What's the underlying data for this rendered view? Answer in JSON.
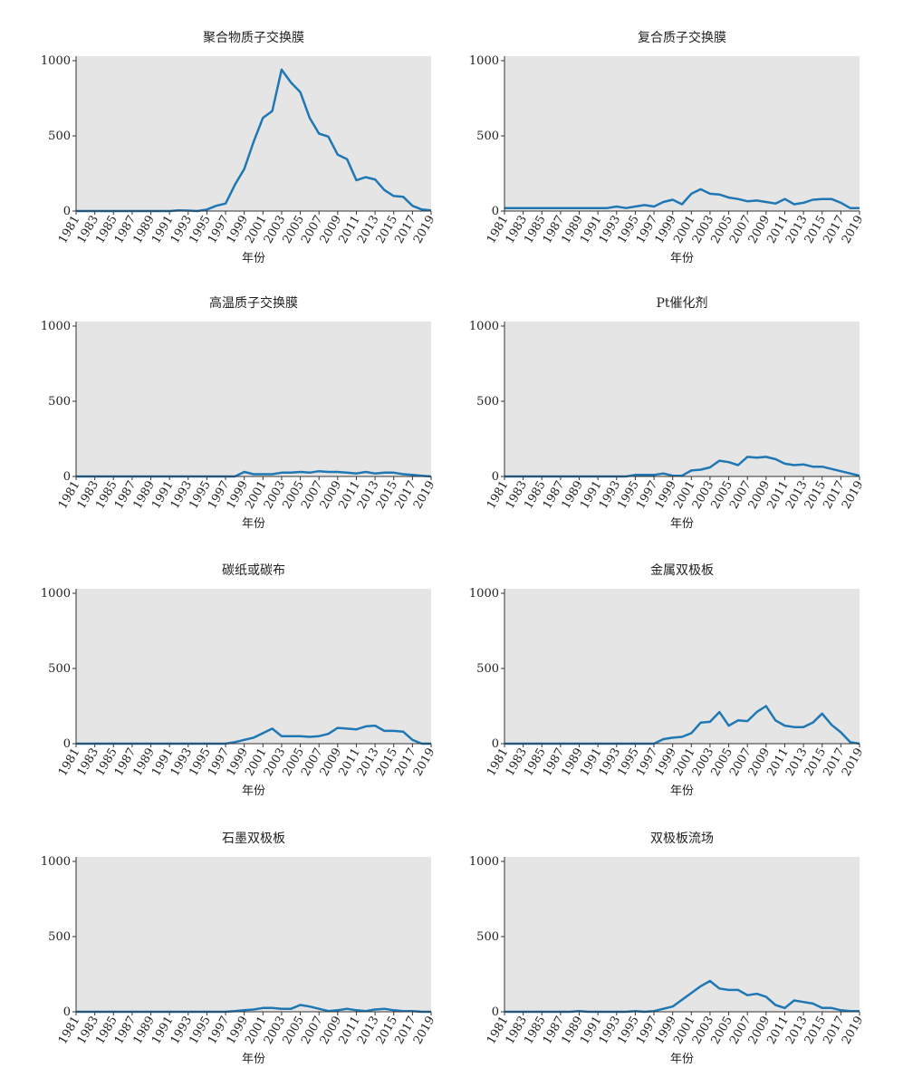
{
  "chart_data": [
    {
      "type": "line",
      "title": "聚合物质子交换膜",
      "x_label": "年份",
      "x": [
        1981,
        1982,
        1983,
        1984,
        1985,
        1986,
        1987,
        1988,
        1989,
        1990,
        1991,
        1992,
        1993,
        1994,
        1995,
        1996,
        1997,
        1998,
        1999,
        2000,
        2001,
        2002,
        2003,
        2004,
        2005,
        2006,
        2007,
        2008,
        2009,
        2010,
        2011,
        2012,
        2013,
        2014,
        2015,
        2016,
        2017,
        2018,
        2019
      ],
      "values": [
        0,
        0,
        0,
        0,
        0,
        0,
        0,
        0,
        0,
        0,
        0,
        5,
        3,
        0,
        10,
        35,
        50,
        175,
        280,
        460,
        620,
        665,
        940,
        855,
        790,
        620,
        515,
        495,
        375,
        345,
        205,
        225,
        210,
        140,
        100,
        95,
        35,
        10,
        5
      ],
      "color": "#1f77b4",
      "xlim": [
        1981,
        2019
      ],
      "xticks": [
        1981,
        1983,
        1985,
        1987,
        1989,
        1991,
        1993,
        1995,
        1997,
        1999,
        2001,
        2003,
        2005,
        2007,
        2009,
        2011,
        2013,
        2015,
        2017,
        2019
      ],
      "ylim": [
        0,
        1030
      ],
      "yticks": [
        0,
        500,
        1000
      ]
    },
    {
      "type": "line",
      "title": "复合质子交换膜",
      "x_label": "年份",
      "x": [
        1981,
        1982,
        1983,
        1984,
        1985,
        1986,
        1987,
        1988,
        1989,
        1990,
        1991,
        1992,
        1993,
        1994,
        1995,
        1996,
        1997,
        1998,
        1999,
        2000,
        2001,
        2002,
        2003,
        2004,
        2005,
        2006,
        2007,
        2008,
        2009,
        2010,
        2011,
        2012,
        2013,
        2014,
        2015,
        2016,
        2017,
        2018,
        2019
      ],
      "values": [
        20,
        20,
        20,
        20,
        20,
        20,
        20,
        20,
        20,
        20,
        20,
        20,
        30,
        20,
        30,
        40,
        30,
        60,
        75,
        45,
        115,
        145,
        115,
        110,
        90,
        80,
        65,
        70,
        60,
        50,
        80,
        45,
        55,
        75,
        80,
        80,
        55,
        20,
        20
      ],
      "color": "#1f77b4",
      "xlim": [
        1981,
        2019
      ],
      "xticks": [
        1981,
        1983,
        1985,
        1987,
        1989,
        1991,
        1993,
        1995,
        1997,
        1999,
        2001,
        2003,
        2005,
        2007,
        2009,
        2011,
        2013,
        2015,
        2017,
        2019
      ],
      "ylim": [
        0,
        1030
      ],
      "yticks": [
        0,
        500,
        1000
      ]
    },
    {
      "type": "line",
      "title": "高温质子交换膜",
      "x_label": "年份",
      "x": [
        1981,
        1982,
        1983,
        1984,
        1985,
        1986,
        1987,
        1988,
        1989,
        1990,
        1991,
        1992,
        1993,
        1994,
        1995,
        1996,
        1997,
        1998,
        1999,
        2000,
        2001,
        2002,
        2003,
        2004,
        2005,
        2006,
        2007,
        2008,
        2009,
        2010,
        2011,
        2012,
        2013,
        2014,
        2015,
        2016,
        2017,
        2018,
        2019
      ],
      "values": [
        0,
        0,
        0,
        0,
        0,
        0,
        0,
        0,
        0,
        0,
        0,
        0,
        0,
        0,
        0,
        0,
        0,
        0,
        30,
        15,
        15,
        15,
        25,
        25,
        30,
        25,
        35,
        30,
        30,
        25,
        20,
        30,
        20,
        25,
        25,
        15,
        10,
        5,
        0
      ],
      "color": "#1f77b4",
      "xlim": [
        1981,
        2019
      ],
      "xticks": [
        1981,
        1983,
        1985,
        1987,
        1989,
        1991,
        1993,
        1995,
        1997,
        1999,
        2001,
        2003,
        2005,
        2007,
        2009,
        2011,
        2013,
        2015,
        2017,
        2019
      ],
      "ylim": [
        0,
        1030
      ],
      "yticks": [
        0,
        500,
        1000
      ]
    },
    {
      "type": "line",
      "title": "Pt催化剂",
      "x_label": "年份",
      "x": [
        1981,
        1982,
        1983,
        1984,
        1985,
        1986,
        1987,
        1988,
        1989,
        1990,
        1991,
        1992,
        1993,
        1994,
        1995,
        1996,
        1997,
        1998,
        1999,
        2000,
        2001,
        2002,
        2003,
        2004,
        2005,
        2006,
        2007,
        2008,
        2009,
        2010,
        2011,
        2012,
        2013,
        2014,
        2015,
        2016,
        2017,
        2018,
        2019
      ],
      "values": [
        0,
        0,
        0,
        0,
        0,
        0,
        0,
        0,
        0,
        0,
        0,
        0,
        0,
        0,
        10,
        10,
        10,
        20,
        5,
        5,
        40,
        45,
        60,
        105,
        95,
        75,
        130,
        125,
        130,
        115,
        85,
        75,
        80,
        65,
        65,
        50,
        35,
        20,
        5
      ],
      "color": "#1f77b4",
      "xlim": [
        1981,
        2019
      ],
      "xticks": [
        1981,
        1983,
        1985,
        1987,
        1989,
        1991,
        1993,
        1995,
        1997,
        1999,
        2001,
        2003,
        2005,
        2007,
        2009,
        2011,
        2013,
        2015,
        2017,
        2019
      ],
      "ylim": [
        0,
        1030
      ],
      "yticks": [
        0,
        500,
        1000
      ]
    },
    {
      "type": "line",
      "title": "碳纸或碳布",
      "x_label": "年份",
      "x": [
        1981,
        1982,
        1983,
        1984,
        1985,
        1986,
        1987,
        1988,
        1989,
        1990,
        1991,
        1992,
        1993,
        1994,
        1995,
        1996,
        1997,
        1998,
        1999,
        2000,
        2001,
        2002,
        2003,
        2004,
        2005,
        2006,
        2007,
        2008,
        2009,
        2010,
        2011,
        2012,
        2013,
        2014,
        2015,
        2016,
        2017,
        2018,
        2019
      ],
      "values": [
        0,
        0,
        0,
        0,
        0,
        0,
        0,
        0,
        0,
        0,
        0,
        0,
        0,
        0,
        0,
        0,
        0,
        10,
        25,
        40,
        70,
        100,
        50,
        50,
        50,
        45,
        50,
        65,
        105,
        100,
        95,
        115,
        120,
        85,
        85,
        80,
        25,
        0,
        0
      ],
      "color": "#1f77b4",
      "xlim": [
        1981,
        2019
      ],
      "xticks": [
        1981,
        1983,
        1985,
        1987,
        1989,
        1991,
        1993,
        1995,
        1997,
        1999,
        2001,
        2003,
        2005,
        2007,
        2009,
        2011,
        2013,
        2015,
        2017,
        2019
      ],
      "ylim": [
        0,
        1030
      ],
      "yticks": [
        0,
        500,
        1000
      ]
    },
    {
      "type": "line",
      "title": "金属双极板",
      "x_label": "年份",
      "x": [
        1981,
        1982,
        1983,
        1984,
        1985,
        1986,
        1987,
        1988,
        1989,
        1990,
        1991,
        1992,
        1993,
        1994,
        1995,
        1996,
        1997,
        1998,
        1999,
        2000,
        2001,
        2002,
        2003,
        2004,
        2005,
        2006,
        2007,
        2008,
        2009,
        2010,
        2011,
        2012,
        2013,
        2014,
        2015,
        2016,
        2017,
        2018,
        2019
      ],
      "values": [
        0,
        0,
        0,
        0,
        0,
        0,
        0,
        0,
        0,
        0,
        0,
        0,
        0,
        0,
        0,
        0,
        0,
        30,
        40,
        45,
        70,
        140,
        145,
        210,
        120,
        155,
        150,
        210,
        250,
        155,
        120,
        110,
        110,
        140,
        200,
        125,
        75,
        10,
        0
      ],
      "color": "#1f77b4",
      "xlim": [
        1981,
        2019
      ],
      "xticks": [
        1981,
        1983,
        1985,
        1987,
        1989,
        1991,
        1993,
        1995,
        1997,
        1999,
        2001,
        2003,
        2005,
        2007,
        2009,
        2011,
        2013,
        2015,
        2017,
        2019
      ],
      "ylim": [
        0,
        1030
      ],
      "yticks": [
        0,
        500,
        1000
      ]
    },
    {
      "type": "line",
      "title": "石墨双极板",
      "x_label": "年份",
      "x": [
        1981,
        1982,
        1983,
        1984,
        1985,
        1986,
        1987,
        1988,
        1989,
        1990,
        1991,
        1992,
        1993,
        1994,
        1995,
        1996,
        1997,
        1998,
        1999,
        2000,
        2001,
        2002,
        2003,
        2004,
        2005,
        2006,
        2007,
        2008,
        2009,
        2010,
        2011,
        2012,
        2013,
        2014,
        2015,
        2016,
        2017,
        2018,
        2019
      ],
      "values": [
        0,
        0,
        0,
        0,
        0,
        0,
        0,
        0,
        0,
        0,
        0,
        0,
        0,
        0,
        0,
        0,
        0,
        5,
        10,
        15,
        25,
        25,
        20,
        20,
        45,
        35,
        20,
        5,
        10,
        20,
        10,
        5,
        15,
        20,
        10,
        5,
        5,
        0,
        0
      ],
      "color": "#1f77b4",
      "xlim": [
        1981,
        2019
      ],
      "xticks": [
        1981,
        1983,
        1985,
        1987,
        1989,
        1991,
        1993,
        1995,
        1997,
        1999,
        2001,
        2003,
        2005,
        2007,
        2009,
        2011,
        2013,
        2015,
        2017,
        2019
      ],
      "ylim": [
        0,
        1030
      ],
      "yticks": [
        0,
        500,
        1000
      ]
    },
    {
      "type": "line",
      "title": "双极板流场",
      "x_label": "年份",
      "x": [
        1981,
        1982,
        1983,
        1984,
        1985,
        1986,
        1987,
        1988,
        1989,
        1990,
        1991,
        1992,
        1993,
        1994,
        1995,
        1996,
        1997,
        1998,
        1999,
        2000,
        2001,
        2002,
        2003,
        2004,
        2005,
        2006,
        2007,
        2008,
        2009,
        2010,
        2011,
        2012,
        2013,
        2014,
        2015,
        2016,
        2017,
        2018,
        2019
      ],
      "values": [
        0,
        0,
        0,
        0,
        0,
        0,
        0,
        0,
        5,
        0,
        0,
        0,
        0,
        0,
        5,
        0,
        5,
        20,
        35,
        80,
        125,
        170,
        205,
        155,
        145,
        145,
        110,
        120,
        100,
        45,
        25,
        75,
        65,
        55,
        25,
        25,
        10,
        5,
        5
      ],
      "color": "#1f77b4",
      "xlim": [
        1981,
        2019
      ],
      "xticks": [
        1981,
        1983,
        1985,
        1987,
        1989,
        1991,
        1993,
        1995,
        1997,
        1999,
        2001,
        2003,
        2005,
        2007,
        2009,
        2011,
        2013,
        2015,
        2017,
        2019
      ],
      "ylim": [
        0,
        1030
      ],
      "yticks": [
        0,
        500,
        1000
      ]
    }
  ]
}
